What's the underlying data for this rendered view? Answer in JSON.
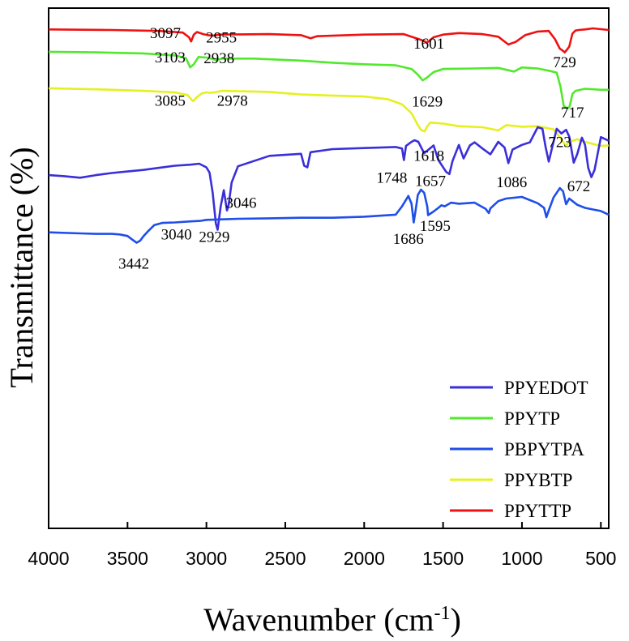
{
  "chart_data": {
    "type": "line",
    "title": "",
    "xlabel": "Wavenumber (cm",
    "xlabel_sup": "-1",
    "xlabel_close": ")",
    "ylabel": "Transmittance (%)",
    "xlim": [
      4000,
      450
    ],
    "x_reversed": true,
    "ylim": [
      0,
      100
    ],
    "y_ticks_shown": false,
    "x_ticks": [
      4000,
      3500,
      3000,
      2500,
      2000,
      1500,
      1000,
      500
    ],
    "x_tick_labels": [
      "4000",
      "3500",
      "3000",
      "2500",
      "2000",
      "1500",
      "1000",
      "500"
    ],
    "legend_position": "bottom-right",
    "legend": [
      {
        "name": "PPYEDOT",
        "color": "#3a2fd9"
      },
      {
        "name": "PPYTP",
        "color": "#52e82e"
      },
      {
        "name": "PBPYTPA",
        "color": "#1f4ee8"
      },
      {
        "name": "PPYBTP",
        "color": "#e6f01f"
      },
      {
        "name": "PPYTTP",
        "color": "#ee1111"
      }
    ],
    "series": [
      {
        "name": "PPYTTP",
        "color": "#ee1111",
        "x": [
          4000,
          3600,
          3300,
          3150,
          3110,
          3097,
          3080,
          3060,
          3020,
          2990,
          2955,
          2920,
          2600,
          2400,
          2340,
          2300,
          2000,
          1750,
          1680,
          1640,
          1601,
          1560,
          1500,
          1400,
          1250,
          1150,
          1086,
          1040,
          980,
          900,
          830,
          790,
          760,
          745,
          729,
          715,
          700,
          680,
          660,
          640,
          600,
          550,
          450
        ],
        "y": [
          95.9,
          95.8,
          95.6,
          95.3,
          94.4,
          93.6,
          94.9,
          95.4,
          95.0,
          94.8,
          94.7,
          94.9,
          95.0,
          94.8,
          94.2,
          94.6,
          94.9,
          95.0,
          94.3,
          93.9,
          93.4,
          94.4,
          94.9,
          95.2,
          95.0,
          94.5,
          93.0,
          93.5,
          94.8,
          95.5,
          95.6,
          94.0,
          92.2,
          91.9,
          91.5,
          92.0,
          92.6,
          95.1,
          95.7,
          95.8,
          95.9,
          96.1,
          95.8
        ]
      },
      {
        "name": "PPYTP",
        "color": "#52e82e",
        "x": [
          4000,
          3700,
          3400,
          3200,
          3130,
          3103,
          3080,
          3050,
          3000,
          2970,
          2938,
          2900,
          2700,
          2400,
          2200,
          2000,
          1800,
          1700,
          1660,
          1629,
          1600,
          1560,
          1500,
          1300,
          1150,
          1050,
          1000,
          900,
          820,
          780,
          755,
          735,
          717,
          700,
          690,
          680,
          660,
          600,
          500,
          450
        ],
        "y": [
          91.6,
          91.5,
          91.3,
          90.9,
          90.4,
          88.6,
          89.2,
          90.6,
          90.5,
          90.3,
          90.0,
          90.3,
          90.3,
          89.9,
          89.5,
          89.2,
          89.0,
          88.3,
          87.2,
          86.1,
          86.7,
          87.7,
          88.3,
          88.4,
          88.5,
          87.8,
          88.6,
          88.4,
          87.9,
          87.6,
          84.8,
          81.2,
          80.8,
          80.9,
          82.1,
          83.5,
          84.1,
          84.5,
          84.3,
          84.3
        ]
      },
      {
        "name": "PPYBTP",
        "color": "#e6f01f",
        "x": [
          4000,
          3700,
          3400,
          3200,
          3120,
          3085,
          3060,
          3030,
          3000,
          2978,
          2950,
          2900,
          2600,
          2400,
          2200,
          2000,
          1850,
          1760,
          1700,
          1660,
          1640,
          1618,
          1600,
          1580,
          1500,
          1400,
          1250,
          1150,
          1100,
          1000,
          900,
          800,
          760,
          735,
          723,
          700,
          650,
          600,
          550,
          500,
          450
        ],
        "y": [
          84.6,
          84.4,
          84.1,
          83.8,
          83.3,
          82.1,
          82.9,
          83.6,
          83.8,
          83.7,
          83.8,
          84.1,
          83.9,
          83.4,
          83.2,
          83.0,
          82.5,
          81.5,
          79.8,
          77.5,
          76.6,
          76.3,
          77.3,
          78.0,
          77.8,
          77.3,
          77.1,
          76.5,
          77.5,
          77.2,
          77.3,
          76.7,
          75.2,
          74.1,
          73.5,
          74.3,
          74.8,
          74.3,
          73.9,
          73.5,
          73.6
        ]
      },
      {
        "name": "PPYEDOT",
        "color": "#3a2fd9",
        "x": [
          4000,
          3900,
          3800,
          3700,
          3600,
          3500,
          3400,
          3300,
          3200,
          3100,
          3046,
          3000,
          2980,
          2960,
          2940,
          2929,
          2910,
          2890,
          2870,
          2860,
          2840,
          2800,
          2600,
          2400,
          2380,
          2360,
          2340,
          2200,
          2000,
          1800,
          1760,
          1748,
          1735,
          1700,
          1680,
          1657,
          1620,
          1560,
          1530,
          1480,
          1460,
          1440,
          1400,
          1370,
          1330,
          1300,
          1250,
          1200,
          1150,
          1110,
          1086,
          1060,
          1000,
          950,
          900,
          870,
          850,
          830,
          800,
          780,
          750,
          720,
          700,
          672,
          650,
          620,
          600,
          580,
          560,
          540,
          500,
          450
        ],
        "y": [
          67.9,
          67.7,
          67.4,
          67.9,
          68.3,
          68.6,
          68.9,
          69.3,
          69.7,
          69.9,
          70.1,
          69.4,
          68.4,
          64.5,
          58.6,
          57.4,
          61.8,
          65.0,
          61.1,
          62.0,
          66.5,
          69.6,
          71.6,
          72.0,
          69.7,
          69.4,
          72.3,
          72.9,
          73.1,
          73.3,
          73.0,
          70.8,
          73.5,
          74.3,
          74.6,
          74.3,
          72.1,
          73.6,
          70.8,
          68.5,
          68.1,
          70.6,
          73.7,
          71.1,
          73.6,
          74.2,
          73.0,
          71.9,
          74.3,
          73.2,
          70.2,
          72.8,
          73.7,
          74.2,
          77.1,
          76.8,
          73.3,
          70.5,
          74.3,
          76.8,
          75.9,
          76.6,
          75.3,
          70.3,
          71.9,
          75.1,
          73.7,
          69.3,
          67.5,
          68.9,
          75.2,
          74.5
        ]
      },
      {
        "name": "PBPYTPA",
        "color": "#1f4ee8",
        "x": [
          4000,
          3800,
          3700,
          3600,
          3550,
          3500,
          3470,
          3442,
          3420,
          3400,
          3370,
          3330,
          3280,
          3200,
          3100,
          3040,
          3000,
          2900,
          2800,
          2600,
          2400,
          2200,
          2000,
          1800,
          1760,
          1720,
          1700,
          1686,
          1675,
          1660,
          1640,
          1620,
          1600,
          1595,
          1560,
          1530,
          1510,
          1490,
          1450,
          1400,
          1300,
          1230,
          1210,
          1200,
          1150,
          1100,
          1000,
          900,
          860,
          845,
          830,
          800,
          760,
          740,
          720,
          700,
          650,
          600,
          550,
          500,
          450
        ],
        "y": [
          56.9,
          56.7,
          56.6,
          56.6,
          56.5,
          56.2,
          55.5,
          54.9,
          55.3,
          56.1,
          57.1,
          58.3,
          58.7,
          58.8,
          59.0,
          59.1,
          59.3,
          59.4,
          59.5,
          59.6,
          59.7,
          59.7,
          59.9,
          60.3,
          61.9,
          63.9,
          62.4,
          58.8,
          61.0,
          64.1,
          65.1,
          64.5,
          61.8,
          60.2,
          60.9,
          61.6,
          62.1,
          61.9,
          62.6,
          62.4,
          62.6,
          61.4,
          60.6,
          61.5,
          62.9,
          63.4,
          63.7,
          62.5,
          61.6,
          59.8,
          61.1,
          63.6,
          65.4,
          64.8,
          62.3,
          63.4,
          62.2,
          61.6,
          61.3,
          61.0,
          60.3
        ]
      }
    ],
    "annotations": [
      {
        "text": "3097",
        "x": 3260,
        "y": 94.2
      },
      {
        "text": "2955",
        "x": 2905,
        "y": 93.4
      },
      {
        "text": "1601",
        "x": 1590,
        "y": 92.2
      },
      {
        "text": "729",
        "x": 730,
        "y": 88.6
      },
      {
        "text": "3103",
        "x": 3230,
        "y": 89.6
      },
      {
        "text": "2938",
        "x": 2920,
        "y": 89.4
      },
      {
        "text": "1629",
        "x": 1600,
        "y": 81.1
      },
      {
        "text": "717",
        "x": 680,
        "y": 79.0
      },
      {
        "text": "3085",
        "x": 3230,
        "y": 81.2
      },
      {
        "text": "2978",
        "x": 2835,
        "y": 81.2
      },
      {
        "text": "1618",
        "x": 1590,
        "y": 70.6
      },
      {
        "text": "723",
        "x": 760,
        "y": 73.3
      },
      {
        "text": "1748",
        "x": 1825,
        "y": 66.4
      },
      {
        "text": "1657",
        "x": 1580,
        "y": 65.8
      },
      {
        "text": "1086",
        "x": 1065,
        "y": 65.6
      },
      {
        "text": "672",
        "x": 640,
        "y": 64.8
      },
      {
        "text": "3046",
        "x": 2780,
        "y": 61.6
      },
      {
        "text": "2929",
        "x": 2950,
        "y": 55.1
      },
      {
        "text": "3040",
        "x": 3190,
        "y": 55.5
      },
      {
        "text": "3442",
        "x": 3460,
        "y": 49.9
      },
      {
        "text": "1686",
        "x": 1720,
        "y": 54.7
      },
      {
        "text": "1595",
        "x": 1550,
        "y": 57.2
      }
    ]
  }
}
